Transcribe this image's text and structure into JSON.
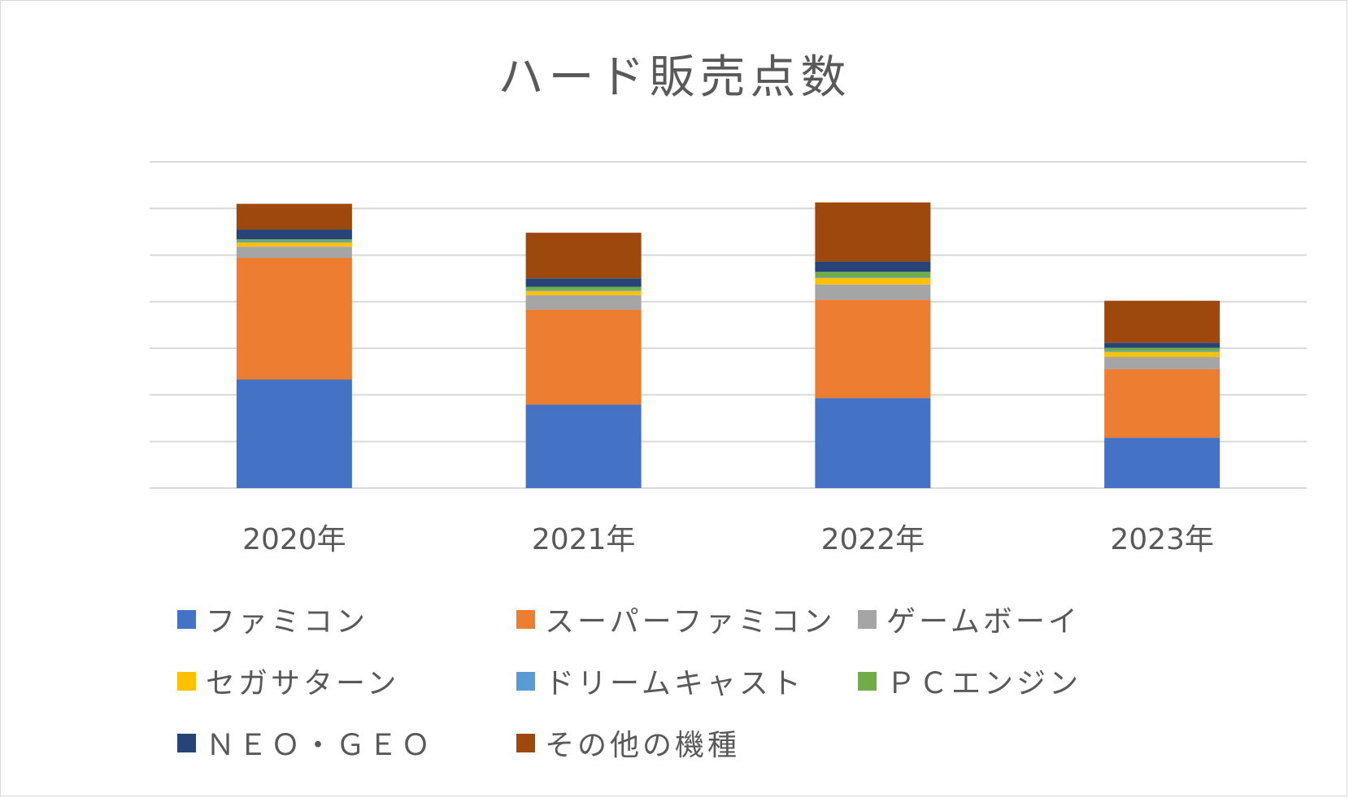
{
  "chart_data": {
    "type": "bar",
    "stacked": true,
    "title": "ハード販売点数",
    "categories": [
      "2020年",
      "2021年",
      "2022年",
      "2023年"
    ],
    "ylim": [
      0,
      7
    ],
    "y_gridlines": [
      0,
      1,
      2,
      3,
      4,
      5,
      6,
      7
    ],
    "y_tick_labels_shown": false,
    "grid": true,
    "legend_position": "bottom",
    "series": [
      {
        "name": "ファミコン",
        "color": "#4472C4",
        "values": [
          2.33,
          1.79,
          1.93,
          1.08
        ]
      },
      {
        "name": "スーパーファミコン",
        "color": "#ED7D31",
        "values": [
          2.61,
          2.04,
          2.11,
          1.47
        ]
      },
      {
        "name": "ゲームボーイ",
        "color": "#A5A5A5",
        "values": [
          0.24,
          0.31,
          0.33,
          0.26
        ]
      },
      {
        "name": "セガサターン",
        "color": "#FFC000",
        "values": [
          0.09,
          0.09,
          0.14,
          0.11
        ]
      },
      {
        "name": "ドリームキャスト",
        "color": "#5B9BD5",
        "values": [
          0.03,
          0.02,
          0.02,
          0.02
        ]
      },
      {
        "name": "ＰＣエンジン",
        "color": "#70AD47",
        "values": [
          0.04,
          0.07,
          0.11,
          0.07
        ]
      },
      {
        "name": "ＮＥＯ・ＧＥＯ",
        "color": "#264478",
        "values": [
          0.21,
          0.18,
          0.22,
          0.11
        ]
      },
      {
        "name": "その他の機種",
        "color": "#9E480E",
        "values": [
          0.55,
          0.98,
          1.27,
          0.9
        ]
      }
    ]
  }
}
